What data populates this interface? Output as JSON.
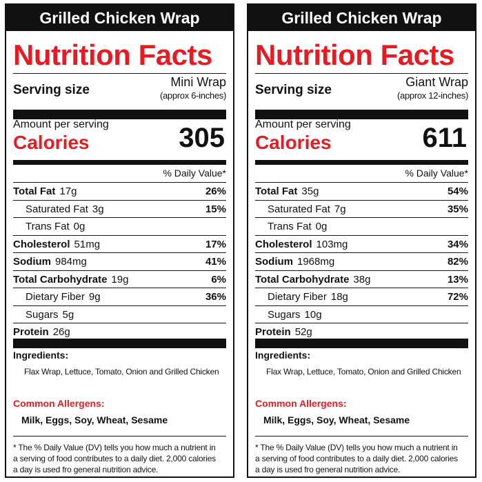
{
  "labels": [
    {
      "title": "Grilled Chicken Wrap",
      "heading": "Nutrition Facts",
      "serving_label": "Serving size",
      "serving_size": "Mini Wrap",
      "serving_note": "(approx 6-inches)",
      "amount_label": "Amount per serving",
      "calories_label": "Calories",
      "calories": "305",
      "dv_header": "% Daily Value*",
      "nutrients": [
        {
          "name": "Total Fat",
          "amount": "17g",
          "dv": "26%"
        },
        {
          "name": "Saturated Fat",
          "amount": "3g",
          "dv": "15%"
        },
        {
          "name": "Trans Fat",
          "amount": "0g",
          "dv": ""
        },
        {
          "name": "Cholesterol",
          "amount": "51mg",
          "dv": "17%"
        },
        {
          "name": "Sodium",
          "amount": "984mg",
          "dv": "41%"
        },
        {
          "name": "Total Carbohydrate",
          "amount": "19g",
          "dv": "6%"
        },
        {
          "name": "Dietary Fiber",
          "amount": "9g",
          "dv": "36%"
        },
        {
          "name": "Sugars",
          "amount": "5g",
          "dv": ""
        },
        {
          "name": "Protein",
          "amount": "26g",
          "dv": ""
        }
      ],
      "ingredients_label": "Ingredients:",
      "ingredients": "Flax Wrap, Lettuce, Tomato, Onion and Grilled Chicken",
      "allergens_label": "Common Allergens:",
      "allergens": "Milk, Eggs, Soy, Wheat, Sesame",
      "footnote_1": "* The % Daily Value (DV) tells you how much a nutrient in",
      "footnote_2": "a serving of food contributes to a daily diet.  2,000 calories",
      "footnote_3": "a day is used fro general nutrition advice."
    },
    {
      "title": "Grilled Chicken Wrap",
      "heading": "Nutrition Facts",
      "serving_label": "Serving size",
      "serving_size": "Giant Wrap",
      "serving_note": "(approx 12-inches)",
      "amount_label": "Amount per serving",
      "calories_label": "Calories",
      "calories": "611",
      "dv_header": "% Daily Value*",
      "nutrients": [
        {
          "name": "Total Fat",
          "amount": "35g",
          "dv": "54%"
        },
        {
          "name": "Saturated Fat",
          "amount": "7g",
          "dv": "35%"
        },
        {
          "name": "Trans Fat",
          "amount": "0g",
          "dv": ""
        },
        {
          "name": "Cholesterol",
          "amount": "103mg",
          "dv": "34%"
        },
        {
          "name": "Sodium",
          "amount": "1968mg",
          "dv": "82%"
        },
        {
          "name": "Total Carbohydrate",
          "amount": "38g",
          "dv": "13%"
        },
        {
          "name": "Dietary Fiber",
          "amount": "18g",
          "dv": "72%"
        },
        {
          "name": "Sugars",
          "amount": "10g",
          "dv": ""
        },
        {
          "name": "Protein",
          "amount": "52g",
          "dv": ""
        }
      ],
      "ingredients_label": "Ingredients:",
      "ingredients": "Flax Wrap, Lettuce, Tomato, Onion and Grilled Chicken",
      "allergens_label": "Common Allergens:",
      "allergens": "Milk, Eggs, Soy, Wheat, Sesame",
      "footnote_1": "* The % Daily Value (DV) tells you how much a nutrient in",
      "footnote_2": "a serving of food contributes to a daily diet.  2,000 calories",
      "footnote_3": "a day is used fro general nutrition advice."
    }
  ],
  "colors": {
    "accent": "#e61b23",
    "ink": "#111111"
  }
}
